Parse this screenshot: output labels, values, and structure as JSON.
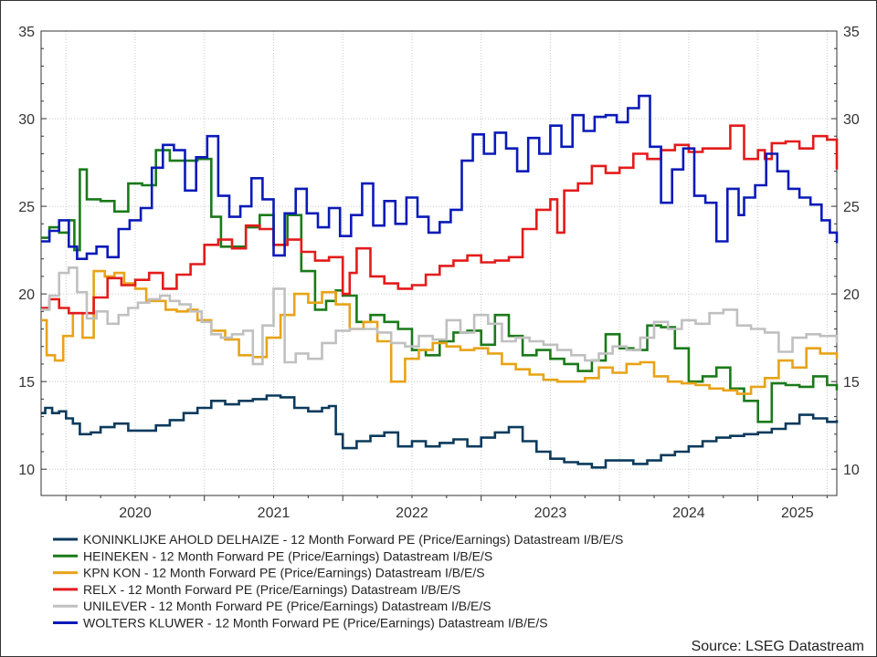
{
  "chart_data": {
    "type": "line",
    "x_unit": "year",
    "xlim": [
      2019.82,
      2025.57
    ],
    "ylim": [
      8.5,
      35
    ],
    "yticks": [
      10,
      15,
      20,
      25,
      30,
      35
    ],
    "ytick_labels": [
      "10",
      "15",
      "20",
      "25",
      "30",
      "35"
    ],
    "xticks": [
      2020,
      2021,
      2022,
      2023,
      2024,
      2025
    ],
    "xtick_labels": [
      "2020",
      "2021",
      "2022",
      "2023",
      "2024",
      "2025"
    ],
    "grid": true,
    "legend_position": "bottom",
    "source": "Source: LSEG Datastream",
    "series": [
      {
        "name": "KONINKLIJKE AHOLD DELHAIZE - 12 Month Forward PE (Price/Earnings) Datastream I/B/E/S",
        "color": "#0b3a5c",
        "x": [
          2019.82,
          2019.85,
          2019.9,
          2019.95,
          2020.0,
          2020.05,
          2020.1,
          2020.18,
          2020.25,
          2020.35,
          2020.45,
          2020.55,
          2020.65,
          2020.75,
          2020.85,
          2020.95,
          2021.05,
          2021.15,
          2021.25,
          2021.35,
          2021.45,
          2021.55,
          2021.65,
          2021.75,
          2021.85,
          2021.9,
          2021.95,
          2022.0,
          2022.1,
          2022.2,
          2022.3,
          2022.4,
          2022.5,
          2022.6,
          2022.7,
          2022.8,
          2022.9,
          2023.0,
          2023.1,
          2023.2,
          2023.3,
          2023.4,
          2023.5,
          2023.6,
          2023.7,
          2023.8,
          2023.9,
          2024.0,
          2024.1,
          2024.2,
          2024.3,
          2024.4,
          2024.5,
          2024.6,
          2024.7,
          2024.8,
          2024.9,
          2025.0,
          2025.1,
          2025.2,
          2025.3,
          2025.4,
          2025.5,
          2025.57
        ],
        "values": [
          13.2,
          13.5,
          13.2,
          13.3,
          12.9,
          12.6,
          12.0,
          12.1,
          12.4,
          12.6,
          12.2,
          12.2,
          12.5,
          12.8,
          13.2,
          13.5,
          13.9,
          13.7,
          13.9,
          14.0,
          14.2,
          14.1,
          13.5,
          13.3,
          13.5,
          13.6,
          12.0,
          11.2,
          11.6,
          11.9,
          12.1,
          11.3,
          11.6,
          11.3,
          11.5,
          11.7,
          11.3,
          11.8,
          12.1,
          12.4,
          11.6,
          11.0,
          10.6,
          10.4,
          10.3,
          10.1,
          10.5,
          10.5,
          10.3,
          10.5,
          10.8,
          11.0,
          11.3,
          11.6,
          11.8,
          11.9,
          12.0,
          12.1,
          12.3,
          12.6,
          13.1,
          12.9,
          12.7,
          12.8
        ]
      },
      {
        "name": "HEINEKEN - 12 Month Forward PE (Price/Earnings) Datastream I/B/E/S",
        "color": "#1a7a1a",
        "x": [
          2019.82,
          2019.88,
          2019.95,
          2020.02,
          2020.06,
          2020.1,
          2020.15,
          2020.25,
          2020.35,
          2020.45,
          2020.55,
          2020.65,
          2020.75,
          2020.85,
          2020.95,
          2021.05,
          2021.12,
          2021.2,
          2021.3,
          2021.4,
          2021.5,
          2021.6,
          2021.7,
          2021.8,
          2021.88,
          2021.95,
          2022.0,
          2022.1,
          2022.2,
          2022.3,
          2022.4,
          2022.5,
          2022.6,
          2022.7,
          2022.8,
          2022.9,
          2023.0,
          2023.1,
          2023.2,
          2023.3,
          2023.4,
          2023.5,
          2023.6,
          2023.7,
          2023.8,
          2023.9,
          2024.0,
          2024.1,
          2024.2,
          2024.3,
          2024.4,
          2024.5,
          2024.6,
          2024.7,
          2024.8,
          2024.9,
          2025.0,
          2025.1,
          2025.2,
          2025.3,
          2025.4,
          2025.5,
          2025.57
        ],
        "values": [
          23.2,
          23.8,
          23.5,
          24.2,
          22.5,
          27.1,
          25.4,
          25.3,
          24.7,
          26.3,
          26.2,
          28.2,
          27.6,
          27.6,
          27.7,
          24.4,
          22.7,
          22.7,
          23.8,
          24.5,
          22.8,
          24.5,
          21.3,
          19.1,
          19.6,
          20.2,
          19.9,
          18.4,
          18.8,
          18.4,
          18.0,
          16.8,
          16.5,
          17.3,
          17.8,
          17.9,
          17.1,
          18.8,
          17.6,
          16.5,
          16.8,
          16.3,
          16.0,
          15.6,
          16.2,
          17.7,
          16.9,
          16.8,
          18.2,
          18.1,
          16.9,
          15.0,
          15.3,
          15.8,
          14.6,
          13.9,
          12.7,
          14.9,
          14.8,
          14.7,
          15.3,
          14.8,
          14.5
        ]
      },
      {
        "name": "KPN KON - 12 Month Forward PE (Price/Earnings) Datastream I/B/E/S",
        "color": "#e8a317",
        "x": [
          2019.82,
          2019.86,
          2019.92,
          2019.98,
          2020.05,
          2020.12,
          2020.2,
          2020.28,
          2020.35,
          2020.42,
          2020.5,
          2020.58,
          2020.65,
          2020.72,
          2020.8,
          2020.88,
          2020.95,
          2021.05,
          2021.15,
          2021.25,
          2021.35,
          2021.45,
          2021.55,
          2021.65,
          2021.75,
          2021.85,
          2021.95,
          2022.05,
          2022.15,
          2022.25,
          2022.35,
          2022.45,
          2022.55,
          2022.65,
          2022.75,
          2022.85,
          2022.95,
          2023.05,
          2023.15,
          2023.25,
          2023.35,
          2023.45,
          2023.55,
          2023.65,
          2023.75,
          2023.85,
          2023.95,
          2024.05,
          2024.15,
          2024.25,
          2024.35,
          2024.45,
          2024.55,
          2024.65,
          2024.75,
          2024.85,
          2024.95,
          2025.05,
          2025.15,
          2025.25,
          2025.35,
          2025.45,
          2025.57
        ],
        "values": [
          18.5,
          16.5,
          16.2,
          17.6,
          18.9,
          17.5,
          21.3,
          21.0,
          21.2,
          20.6,
          20.3,
          19.6,
          19.6,
          19.1,
          19.0,
          19.1,
          18.5,
          17.9,
          17.4,
          16.5,
          16.4,
          17.5,
          18.8,
          20.0,
          19.5,
          20.1,
          19.4,
          18.0,
          18.4,
          17.3,
          15.0,
          16.3,
          16.8,
          17.2,
          17.0,
          16.8,
          16.9,
          16.6,
          16.0,
          15.7,
          15.4,
          15.1,
          15.0,
          15.0,
          15.2,
          15.8,
          15.5,
          16.0,
          16.1,
          15.3,
          15.0,
          14.9,
          14.8,
          14.6,
          14.5,
          14.3,
          14.7,
          15.2,
          16.2,
          15.8,
          16.9,
          16.6,
          16.3
        ]
      },
      {
        "name": "RELX - 12 Month Forward PE (Price/Earnings) Datastream I/B/E/S",
        "color": "#e31b1b",
        "x": [
          2019.82,
          2019.88,
          2019.95,
          2020.02,
          2020.1,
          2020.2,
          2020.3,
          2020.4,
          2020.5,
          2020.6,
          2020.7,
          2020.8,
          2020.9,
          2021.0,
          2021.1,
          2021.2,
          2021.3,
          2021.4,
          2021.5,
          2021.6,
          2021.7,
          2021.8,
          2021.9,
          2022.0,
          2022.05,
          2022.1,
          2022.2,
          2022.3,
          2022.4,
          2022.5,
          2022.6,
          2022.7,
          2022.8,
          2022.9,
          2023.0,
          2023.1,
          2023.2,
          2023.3,
          2023.4,
          2023.5,
          2023.55,
          2023.6,
          2023.7,
          2023.8,
          2023.9,
          2024.0,
          2024.1,
          2024.2,
          2024.3,
          2024.4,
          2024.5,
          2024.6,
          2024.7,
          2024.8,
          2024.9,
          2025.0,
          2025.05,
          2025.1,
          2025.2,
          2025.3,
          2025.4,
          2025.5,
          2025.57
        ],
        "values": [
          19.2,
          19.7,
          19.2,
          18.9,
          18.9,
          19.8,
          20.9,
          20.5,
          20.8,
          21.2,
          20.3,
          21.1,
          21.7,
          22.8,
          23.1,
          22.6,
          23.9,
          23.7,
          22.8,
          23.1,
          22.4,
          21.9,
          22.1,
          20.0,
          21.2,
          22.6,
          21.0,
          20.6,
          20.3,
          20.5,
          21.1,
          21.6,
          21.9,
          22.2,
          21.8,
          21.9,
          22.1,
          23.7,
          24.8,
          25.4,
          23.5,
          25.9,
          26.3,
          27.3,
          26.9,
          27.2,
          28.0,
          27.7,
          28.2,
          28.5,
          28.1,
          28.3,
          28.3,
          29.6,
          27.7,
          28.2,
          27.7,
          28.6,
          28.7,
          28.3,
          29.0,
          28.8,
          27.1
        ]
      },
      {
        "name": "UNILEVER - 12 Month Forward PE (Price/Earnings) Datastream I/B/E/S",
        "color": "#c0c0c0",
        "x": [
          2019.82,
          2019.88,
          2019.95,
          2020.02,
          2020.08,
          2020.15,
          2020.22,
          2020.3,
          2020.38,
          2020.45,
          2020.52,
          2020.6,
          2020.68,
          2020.75,
          2020.82,
          2020.9,
          2020.98,
          2021.05,
          2021.12,
          2021.2,
          2021.28,
          2021.35,
          2021.42,
          2021.5,
          2021.58,
          2021.66,
          2021.75,
          2021.85,
          2021.95,
          2022.05,
          2022.15,
          2022.25,
          2022.35,
          2022.45,
          2022.55,
          2022.65,
          2022.75,
          2022.85,
          2022.95,
          2023.05,
          2023.15,
          2023.25,
          2023.35,
          2023.45,
          2023.55,
          2023.65,
          2023.75,
          2023.85,
          2023.95,
          2024.05,
          2024.15,
          2024.25,
          2024.35,
          2024.45,
          2024.55,
          2024.65,
          2024.75,
          2024.85,
          2024.95,
          2025.05,
          2025.15,
          2025.25,
          2025.35,
          2025.45,
          2025.57
        ],
        "values": [
          19.1,
          19.9,
          21.2,
          21.5,
          20.1,
          18.6,
          19.0,
          18.3,
          18.8,
          19.2,
          19.5,
          19.7,
          19.9,
          19.6,
          19.4,
          19.0,
          18.4,
          17.7,
          17.5,
          17.7,
          17.9,
          16.0,
          18.2,
          20.3,
          16.1,
          16.6,
          16.3,
          17.2,
          17.9,
          18.0,
          18.0,
          17.8,
          17.2,
          17.0,
          17.6,
          17.4,
          18.5,
          17.8,
          18.8,
          18.3,
          17.3,
          17.5,
          17.3,
          17.1,
          16.8,
          16.5,
          16.2,
          16.6,
          17.0,
          16.8,
          17.5,
          18.4,
          18.0,
          18.5,
          18.3,
          18.9,
          19.1,
          18.2,
          18.0,
          17.8,
          16.7,
          17.5,
          17.7,
          17.6,
          17.2
        ]
      },
      {
        "name": "WOLTERS KLUWER - 12 Month Forward PE (Price/Earnings) Datastream I/B/E/S",
        "color": "#0a1ab8",
        "x": [
          2019.82,
          2019.88,
          2019.95,
          2020.02,
          2020.08,
          2020.15,
          2020.22,
          2020.3,
          2020.38,
          2020.46,
          2020.54,
          2020.62,
          2020.7,
          2020.78,
          2020.86,
          2020.94,
          2021.02,
          2021.1,
          2021.18,
          2021.26,
          2021.34,
          2021.42,
          2021.5,
          2021.58,
          2021.66,
          2021.74,
          2021.82,
          2021.9,
          2021.98,
          2022.06,
          2022.14,
          2022.22,
          2022.3,
          2022.38,
          2022.46,
          2022.54,
          2022.62,
          2022.7,
          2022.78,
          2022.86,
          2022.94,
          2023.02,
          2023.1,
          2023.18,
          2023.26,
          2023.34,
          2023.42,
          2023.5,
          2023.58,
          2023.66,
          2023.74,
          2023.82,
          2023.9,
          2023.98,
          2024.06,
          2024.14,
          2024.22,
          2024.3,
          2024.38,
          2024.46,
          2024.54,
          2024.62,
          2024.7,
          2024.78,
          2024.86,
          2024.9,
          2024.98,
          2025.06,
          2025.14,
          2025.22,
          2025.3,
          2025.38,
          2025.46,
          2025.52,
          2025.57
        ],
        "values": [
          23.0,
          23.6,
          24.2,
          22.7,
          22.0,
          22.3,
          22.7,
          22.1,
          23.7,
          24.2,
          24.9,
          27.2,
          28.5,
          28.2,
          25.9,
          27.8,
          29.0,
          25.6,
          24.4,
          25.0,
          26.6,
          25.4,
          22.2,
          24.6,
          26.0,
          24.6,
          23.8,
          24.9,
          23.3,
          24.5,
          26.3,
          23.9,
          25.3,
          24.0,
          25.5,
          24.4,
          23.5,
          24.1,
          24.8,
          27.6,
          29.1,
          28.0,
          29.2,
          28.3,
          27.0,
          28.9,
          28.0,
          29.6,
          28.4,
          30.2,
          29.3,
          30.1,
          30.2,
          29.8,
          30.6,
          31.3,
          28.4,
          25.2,
          27.1,
          28.3,
          25.6,
          25.2,
          23.0,
          26.0,
          24.5,
          25.5,
          26.2,
          28.0,
          27.0,
          26.0,
          25.5,
          25.1,
          24.2,
          23.5,
          22.9
        ]
      }
    ]
  }
}
